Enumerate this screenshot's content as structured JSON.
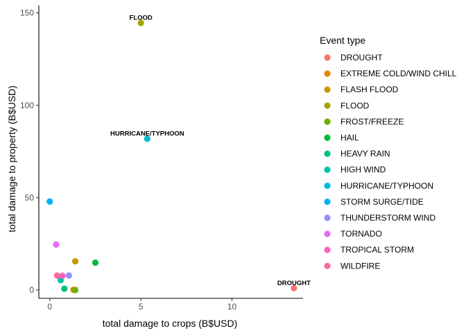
{
  "chart_data": {
    "type": "scatter",
    "xlabel": "total damage to crops (B$USD)",
    "ylabel": "total damage to property (B$USD)",
    "xlim": [
      -0.6,
      13.9
    ],
    "ylim": [
      -4.5,
      154
    ],
    "x_ticks": [
      0,
      5,
      10
    ],
    "y_ticks": [
      0,
      50,
      100,
      150
    ],
    "grid": false,
    "legend_position": "right",
    "legend_title": "Event type",
    "series": [
      {
        "name": "DROUGHT",
        "color": "#F8766D",
        "x": 13.4,
        "y": 1.0
      },
      {
        "name": "EXTREME COLD/WIND CHILL",
        "color": "#E58700",
        "x": 1.3,
        "y": 0.1
      },
      {
        "name": "FLASH FLOOD",
        "color": "#C99800",
        "x": 1.4,
        "y": 15.5
      },
      {
        "name": "FLOOD",
        "color": "#A3A500",
        "x": 5.0,
        "y": 144.6
      },
      {
        "name": "FROST/FREEZE",
        "color": "#6BB100",
        "x": 1.4,
        "y": 0.0
      },
      {
        "name": "HAIL",
        "color": "#00BA38",
        "x": 2.5,
        "y": 14.8
      },
      {
        "name": "HEAVY RAIN",
        "color": "#00BF7D",
        "x": 0.8,
        "y": 0.7
      },
      {
        "name": "HIGH WIND",
        "color": "#00C0AF",
        "x": 0.6,
        "y": 5.3
      },
      {
        "name": "HURRICANE/TYPHOON",
        "color": "#00BCD8",
        "x": 5.35,
        "y": 81.9
      },
      {
        "name": "STORM SURGE/TIDE",
        "color": "#00B0F6",
        "x": 0.0,
        "y": 47.9
      },
      {
        "name": "THUNDERSTORM WIND",
        "color": "#9590FF",
        "x": 1.05,
        "y": 7.9
      },
      {
        "name": "TORNADO",
        "color": "#E76BF3",
        "x": 0.35,
        "y": 24.6
      },
      {
        "name": "TROPICAL STORM",
        "color": "#FF62BC",
        "x": 0.7,
        "y": 7.7
      },
      {
        "name": "WILDFIRE",
        "color": "#FF6A98",
        "x": 0.4,
        "y": 7.8
      }
    ],
    "annotations": [
      {
        "text": "FLOOD",
        "x": 5.0,
        "y": 144.6
      },
      {
        "text": "HURRICANE/TYPHOON",
        "x": 5.35,
        "y": 81.9
      },
      {
        "text": "DROUGHT",
        "x": 13.4,
        "y": 1.0
      }
    ]
  }
}
